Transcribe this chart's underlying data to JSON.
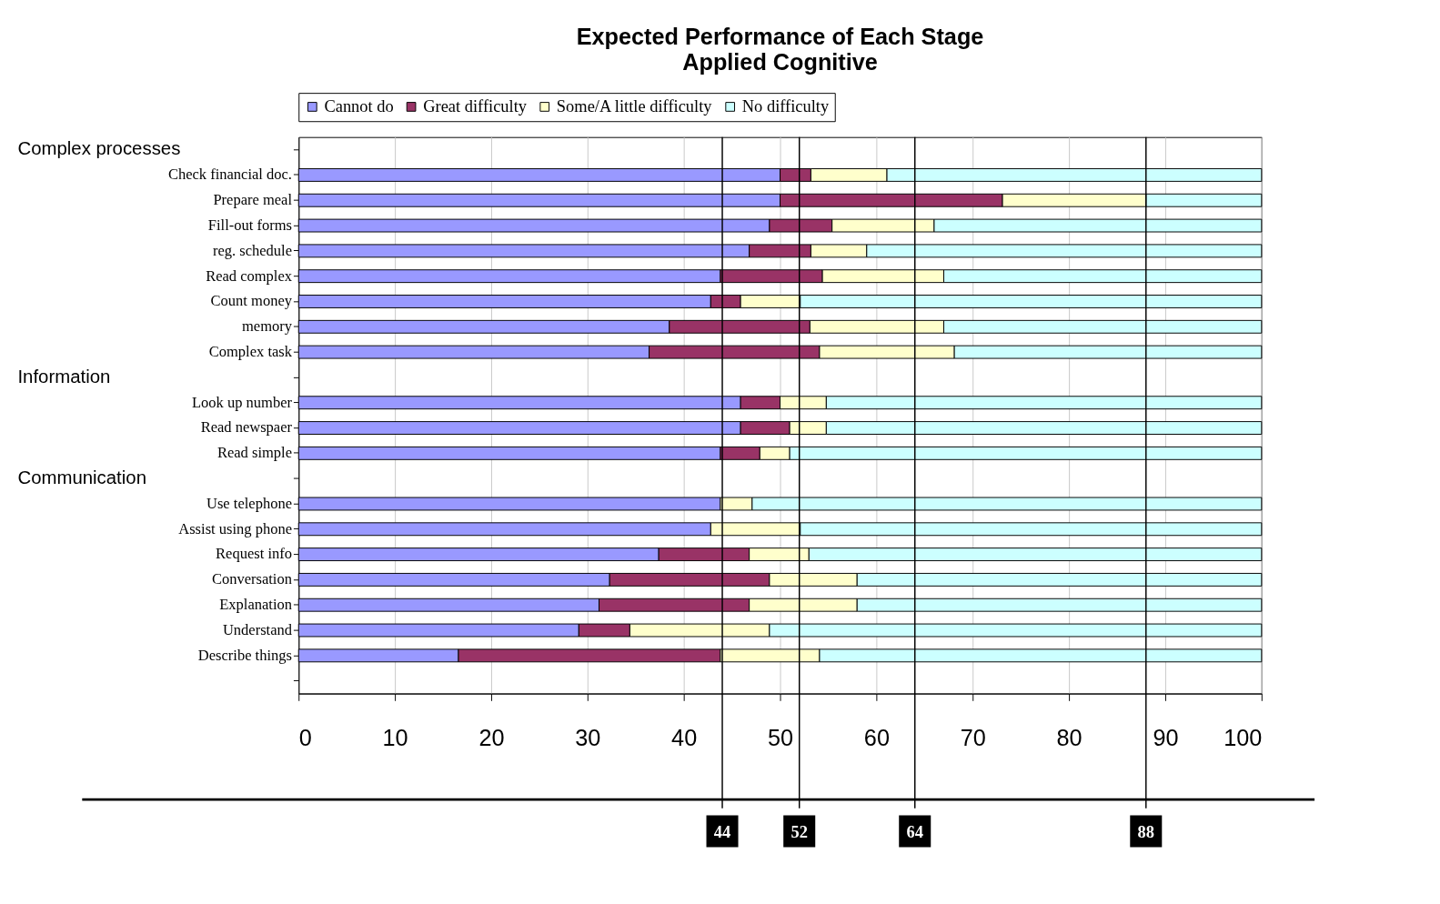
{
  "chart_data": {
    "type": "bar",
    "orientation": "horizontal",
    "stacked": true,
    "title": "Expected Performance of Each Stage",
    "subtitle": "Applied Cognitive",
    "categories": [
      null,
      "Check financial doc.",
      "Prepare meal",
      "Fill-out forms",
      "reg. schedule",
      "Read complex",
      "Count money",
      "memory",
      "Complex task",
      null,
      "Look up number",
      "Read newspaer",
      "Read simple",
      null,
      "Use telephone",
      "Assist using phone",
      "Request info",
      "Conversation",
      "Explanation",
      "Understand",
      "Describe things",
      null
    ],
    "series": [
      {
        "name": "Cannot do",
        "color": "#9999ff",
        "values": [
          null,
          50.0,
          50.0,
          48.9,
          46.8,
          43.8,
          42.8,
          38.5,
          36.4,
          null,
          45.9,
          45.9,
          43.8,
          null,
          43.8,
          42.8,
          37.4,
          32.3,
          31.2,
          29.1,
          16.6,
          null
        ]
      },
      {
        "name": "Great difficulty",
        "color": "#993366",
        "values": [
          null,
          3.2,
          23.1,
          6.5,
          6.4,
          10.6,
          3.1,
          14.6,
          17.7,
          null,
          4.1,
          5.1,
          4.1,
          null,
          null,
          null,
          9.4,
          16.6,
          15.6,
          5.3,
          27.2,
          null
        ]
      },
      {
        "name": "Some/A little difficulty",
        "color": "#ffffcc",
        "values": [
          null,
          7.9,
          14.9,
          10.6,
          5.8,
          12.6,
          6.2,
          13.9,
          14.0,
          null,
          4.8,
          3.8,
          3.1,
          null,
          3.3,
          9.3,
          6.2,
          9.1,
          11.2,
          14.5,
          10.3,
          null
        ]
      },
      {
        "name": "No difficulty",
        "color": "#ccffff",
        "values": [
          null,
          38.9,
          12.0,
          34.0,
          41.0,
          33.0,
          47.9,
          33.0,
          31.9,
          null,
          45.2,
          45.2,
          49.0,
          null,
          52.9,
          47.9,
          47.0,
          42.0,
          42.0,
          51.1,
          45.9,
          null
        ]
      }
    ],
    "xlim": [
      0,
      100
    ],
    "xticks": [
      0,
      10,
      20,
      30,
      40,
      50,
      60,
      70,
      80,
      90,
      100
    ],
    "grid": "x",
    "legend": "top",
    "ref_lines": [
      {
        "axis": "x",
        "value": 44,
        "label": "44",
        "color": "#000000"
      },
      {
        "axis": "x",
        "value": 52,
        "label": "52",
        "color": "#000000"
      },
      {
        "axis": "x",
        "value": 64,
        "label": "64",
        "color": "#000000"
      },
      {
        "axis": "x",
        "value": 88,
        "label": "88",
        "color": "#000000"
      }
    ],
    "annotations": [
      "Complex processes",
      "Information",
      "Communication"
    ]
  }
}
